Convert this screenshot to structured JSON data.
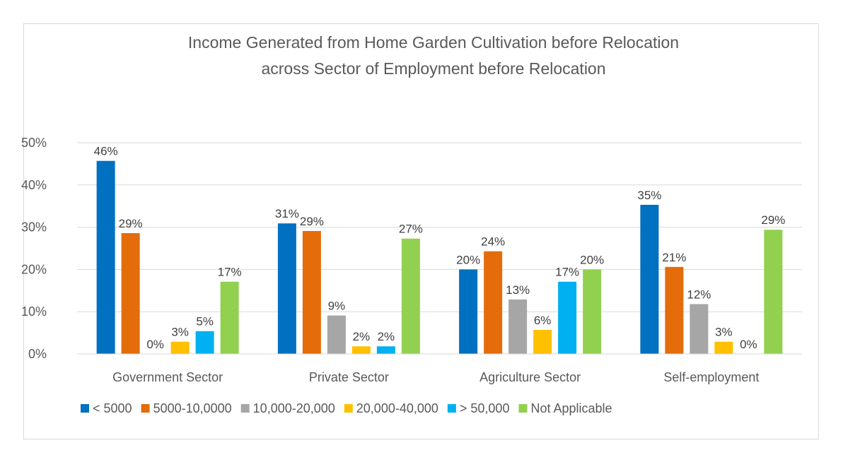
{
  "chart_data": {
    "type": "bar",
    "title": "Income Generated from Home Garden Cultivation before Relocation",
    "subtitle": "across Sector of Employment before Relocation",
    "categories": [
      "Government Sector",
      "Private Sector",
      "Agriculture Sector",
      "Self-employment"
    ],
    "series": [
      {
        "name": "< 5000",
        "color": "#0070c0",
        "values": [
          0.457,
          0.309,
          0.2,
          0.353
        ],
        "labels": [
          "46%",
          "31%",
          "20%",
          "35%"
        ]
      },
      {
        "name": "5000-10,0000",
        "color": "#e46c0a",
        "values": [
          0.286,
          0.291,
          0.243,
          0.206
        ],
        "labels": [
          "29%",
          "29%",
          "24%",
          "21%"
        ]
      },
      {
        "name": "10,000-20,000",
        "color": "#a6a6a6",
        "values": [
          0.0,
          0.091,
          0.129,
          0.118
        ],
        "labels": [
          "0%",
          "9%",
          "13%",
          "12%"
        ]
      },
      {
        "name": "20,000-40,000",
        "color": "#ffc000",
        "values": [
          0.029,
          0.018,
          0.057,
          0.029
        ],
        "labels": [
          "3%",
          "2%",
          "6%",
          "3%"
        ]
      },
      {
        "name": "> 50,000",
        "color": "#00b0f0",
        "values": [
          0.054,
          0.018,
          0.171,
          0.0
        ],
        "labels": [
          "5%",
          "2%",
          "17%",
          "0%"
        ]
      },
      {
        "name": "Not Applicable",
        "color": "#92d050",
        "values": [
          0.171,
          0.273,
          0.2,
          0.294
        ],
        "labels": [
          "17%",
          "27%",
          "20%",
          "29%"
        ]
      }
    ],
    "yticks": [
      "0%",
      "10%",
      "20%",
      "30%",
      "40%",
      "50%"
    ],
    "ylim": [
      0,
      0.5
    ],
    "grid": true,
    "legend": "bottom"
  }
}
